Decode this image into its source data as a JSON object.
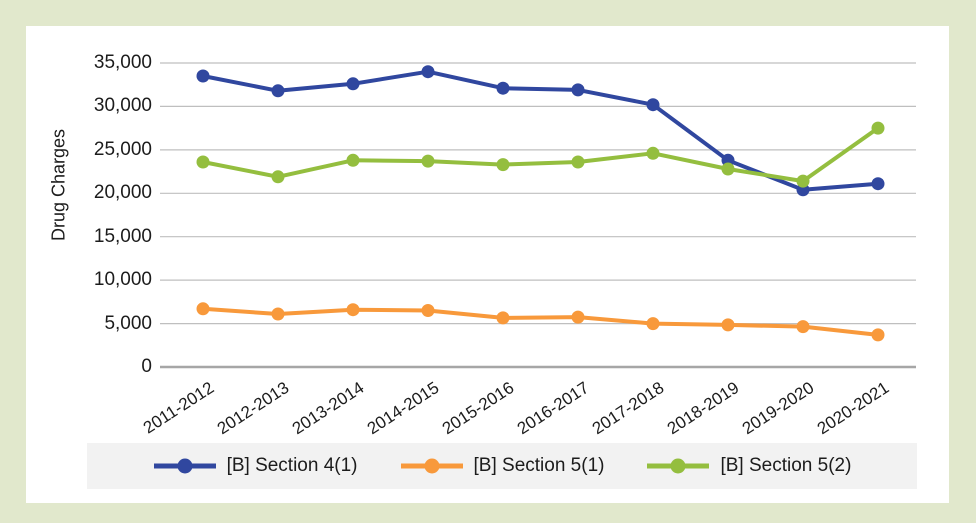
{
  "colors": {
    "background": "#e1e8cc",
    "panel": "#ffffff",
    "gridline": "#bfbfbf",
    "axis_line": "#a6a6a6",
    "legend_background": "#f2f2f2",
    "text": "#1c1c1c"
  },
  "chart_data": {
    "type": "line",
    "title": "",
    "xlabel": "",
    "ylabel": "Drug Charges",
    "grid": "horizontal",
    "legend_position": "bottom",
    "ylim": [
      0,
      35000
    ],
    "ytick_step": 5000,
    "ytick_labels": [
      "0",
      "5,000",
      "10,000",
      "15,000",
      "20,000",
      "25,000",
      "30,000",
      "35,000"
    ],
    "categories": [
      "2011-2012",
      "2012-2013",
      "2013-2014",
      "2014-2015",
      "2015-2016",
      "2016-2017",
      "2017-2018",
      "2018-2019",
      "2019-2020",
      "2020-2021"
    ],
    "series": [
      {
        "name": "[B] Section 4(1)",
        "color": "#30479f",
        "values": [
          33500,
          31800,
          32600,
          34000,
          32100,
          31900,
          30200,
          23800,
          20400,
          21100
        ]
      },
      {
        "name": "[B] Section 5(1)",
        "color": "#f8993b",
        "values": [
          6700,
          6100,
          6600,
          6500,
          5650,
          5750,
          5000,
          4850,
          4650,
          3700
        ]
      },
      {
        "name": "[B] Section 5(2)",
        "color": "#94be3f",
        "values": [
          23600,
          21900,
          23800,
          23700,
          23300,
          23600,
          24600,
          22800,
          21400,
          27500
        ]
      }
    ]
  }
}
